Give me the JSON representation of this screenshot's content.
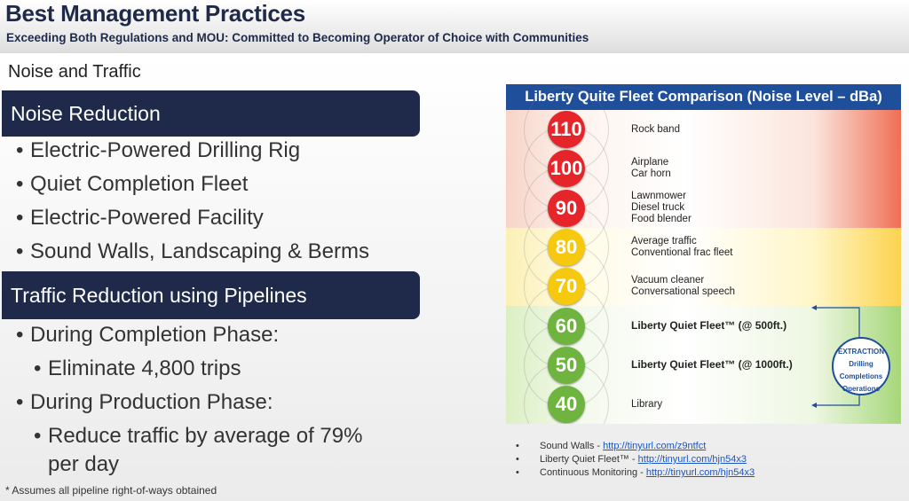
{
  "header": {
    "title": "Best Management Practices",
    "subtitle": "Exceeding Both Regulations and MOU: Committed to Becoming Operator of Choice with Communities"
  },
  "section_label": "Noise and Traffic",
  "noise": {
    "heading": "Noise Reduction",
    "bullets": [
      "Electric-Powered Drilling Rig",
      "Quiet Completion Fleet",
      "Electric-Powered Facility",
      "Sound Walls, Landscaping & Berms"
    ]
  },
  "traffic": {
    "heading": "Traffic Reduction using Pipelines",
    "completion": "During Completion Phase:",
    "completion_sub": "Eliminate 4,800 trips",
    "production": "During Production Phase:",
    "production_sub_line1": "Reduce traffic by average of 79%",
    "production_sub_line2": "per day"
  },
  "footnote": "* Assumes all pipeline right-of-ways obtained",
  "chart": {
    "title": "Liberty Quite Fleet Comparison (Noise Level – dBa)",
    "levels": [
      {
        "value": "110",
        "color": "#e5252a",
        "lines": [
          "Rock band"
        ],
        "bold": false
      },
      {
        "value": "100",
        "color": "#e5252a",
        "lines": [
          "Airplane",
          "Car horn"
        ],
        "bold": false
      },
      {
        "value": "90",
        "color": "#e5252a",
        "lines": [
          "Lawnmower",
          "Diesel truck",
          "Food blender"
        ],
        "bold": false
      },
      {
        "value": "80",
        "color": "#f6c90e",
        "lines": [
          "Average traffic",
          "Conventional frac fleet"
        ],
        "bold": false
      },
      {
        "value": "70",
        "color": "#f6c90e",
        "lines": [
          "Vacuum cleaner",
          "Conversational speech"
        ],
        "bold": false
      },
      {
        "value": "60",
        "color": "#6fb43f",
        "lines": [
          "Liberty Quiet Fleet™  (@ 500ft.)"
        ],
        "bold": true
      },
      {
        "value": "50",
        "color": "#6fb43f",
        "lines": [
          "Liberty Quiet Fleet™  (@ 1000ft.)"
        ],
        "bold": true
      },
      {
        "value": "40",
        "color": "#6fb43f",
        "lines": [
          "Library"
        ],
        "bold": false
      }
    ],
    "logo": {
      "brand": "EXTRACTION",
      "line1": "Drilling",
      "line2": "Completions",
      "line3": "Operations"
    }
  },
  "references": [
    {
      "label": "Sound Walls - ",
      "link": "http://tinyurl.com/z9ntfct"
    },
    {
      "label": "Liberty Quiet Fleet™ - ",
      "link": "http://tinyurl.com/hjn54x3"
    },
    {
      "label": "Continuous Monitoring - ",
      "link": "http://tinyurl.com/hjn54x3"
    }
  ],
  "reference_bullet": "•"
}
